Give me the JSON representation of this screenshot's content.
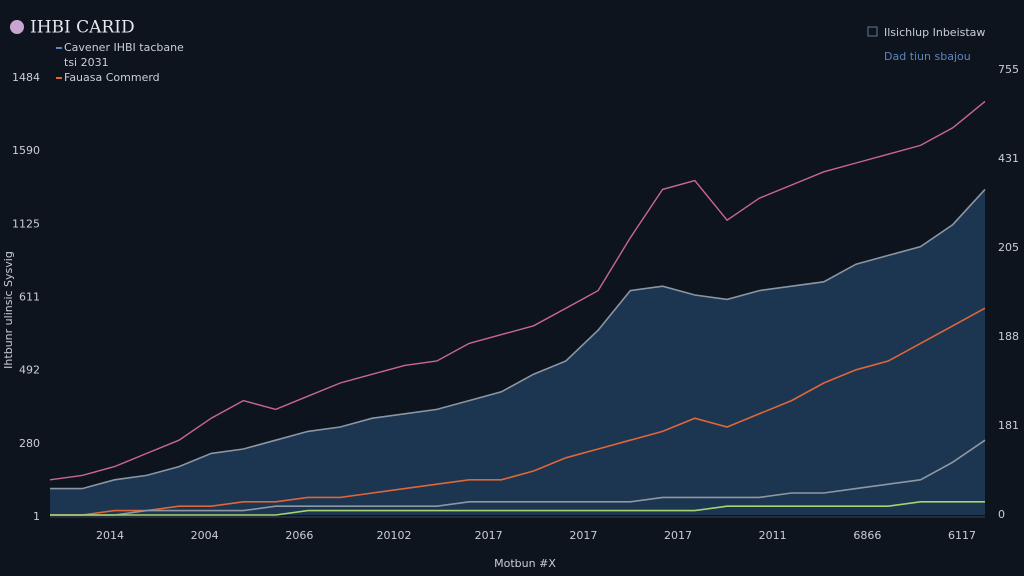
{
  "chart_data": {
    "type": "line",
    "title": "IHBI CARID",
    "legend_note": "tsi 2031",
    "top_right_title": "Ilsichlup Inbeistaw",
    "top_right_subtitle": "Dad tiun sbajou",
    "y_label": "Ihtbunr ulinsic Sysvig",
    "x_label": "Motbun #X",
    "x_labels": [
      "2014",
      "2004",
      "2066",
      "20102",
      "2017",
      "2017",
      "2017",
      "2011",
      "6866",
      "6117"
    ],
    "y_labels_left": [
      "1484",
      "1590",
      "1125",
      "611",
      "492",
      "280",
      "1"
    ],
    "y_labels_right": [
      "755",
      "431",
      "205",
      "188",
      "181",
      "0"
    ],
    "ylim": [
      0,
      100
    ],
    "series": [
      {
        "color": "#c9678f",
        "values": [
          8,
          9,
          11,
          14,
          17,
          22,
          26,
          24,
          27,
          30,
          32,
          34,
          35,
          39,
          41,
          43,
          47,
          51,
          63,
          74,
          76,
          67,
          72,
          75,
          78,
          80,
          82,
          84,
          88,
          94
        ]
      },
      {
        "name": "Cavener IHBI tacbane",
        "color": "#8a96a3",
        "fill": "#1c3550",
        "area": true,
        "values": [
          6,
          6,
          8,
          9,
          11,
          14,
          15,
          17,
          19,
          20,
          22,
          23,
          24,
          26,
          28,
          32,
          35,
          42,
          51,
          52,
          50,
          49,
          51,
          52,
          53,
          57,
          59,
          61,
          66,
          74
        ]
      },
      {
        "name": "Fauasa Commerd",
        "color": "#e0663a",
        "values": [
          0,
          0,
          1,
          1,
          2,
          2,
          3,
          3,
          4,
          4,
          5,
          6,
          7,
          8,
          8,
          10,
          13,
          15,
          17,
          19,
          22,
          20,
          23,
          26,
          30,
          33,
          35,
          39,
          43,
          47
        ]
      },
      {
        "color": "#8e98a4",
        "values": [
          0,
          0,
          0,
          1,
          1,
          1,
          1,
          2,
          2,
          2,
          2,
          2,
          2,
          3,
          3,
          3,
          3,
          3,
          3,
          4,
          4,
          4,
          4,
          5,
          5,
          6,
          7,
          8,
          12,
          17
        ]
      },
      {
        "color": "#a7d36e",
        "values": [
          0,
          0,
          0,
          0,
          0,
          0,
          0,
          0,
          1,
          1,
          1,
          1,
          1,
          1,
          1,
          1,
          1,
          1,
          1,
          1,
          1,
          2,
          2,
          2,
          2,
          2,
          2,
          3,
          3,
          3
        ]
      }
    ]
  }
}
